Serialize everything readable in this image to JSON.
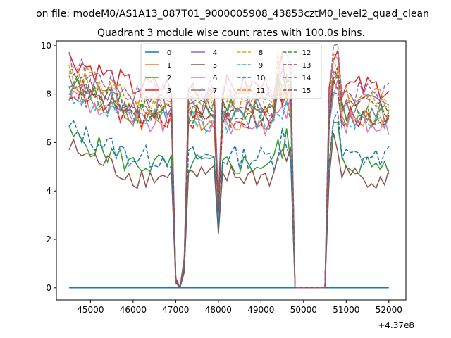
{
  "figure": {
    "suptitle": "on file: modeM0/AS1A13_087T01_9000005908_43853cztM0_level2_quad_clean",
    "title": "Quadrant 3 module wise count rates with 100.0s bins.",
    "x_offset_label": "+4.37e8"
  },
  "chart_data": {
    "type": "line",
    "title": "Quadrant 3 module wise count rates with 100.0s bins.",
    "xlabel": "",
    "ylabel": "",
    "x_offset": 437000000,
    "xlim": [
      44200,
      52400
    ],
    "ylim": [
      -0.5,
      10.2
    ],
    "xticks": [
      45000,
      46000,
      47000,
      48000,
      49000,
      50000,
      51000,
      52000
    ],
    "yticks": [
      0,
      2,
      4,
      6,
      8,
      10
    ],
    "grid": false,
    "legend": {
      "placement": "top-center",
      "columns": 4
    },
    "bin_seconds": 100,
    "time_start": 44500,
    "time_end": 52050,
    "segments": [
      {
        "dip": 47100,
        "low_from": 47000,
        "low_to": 47200,
        "dip_values": "zero"
      },
      {
        "dip": 48000,
        "partial_dip": true
      },
      {
        "gap_from": 49800,
        "gap_to": 50500,
        "gap_value": 0
      }
    ],
    "series": [
      {
        "name": "0",
        "color": "#1f77b4",
        "style": "solid",
        "level": 0.0
      },
      {
        "name": "1",
        "color": "#ff7f0e",
        "style": "solid",
        "level": 7.0
      },
      {
        "name": "2",
        "color": "#2ca02c",
        "style": "solid",
        "level": 5.1
      },
      {
        "name": "3",
        "color": "#d62728",
        "style": "solid",
        "level": 8.3
      },
      {
        "name": "4",
        "color": "#9467bd",
        "style": "solid",
        "level": 7.5
      },
      {
        "name": "5",
        "color": "#8c564b",
        "style": "solid",
        "level": 4.6
      },
      {
        "name": "6",
        "color": "#e377c2",
        "style": "solid",
        "level": 6.8
      },
      {
        "name": "7",
        "color": "#7f7f7f",
        "style": "solid",
        "level": 7.2
      },
      {
        "name": "8",
        "color": "#bcbd22",
        "style": "dashed",
        "level": 7.6
      },
      {
        "name": "9",
        "color": "#17becf",
        "style": "dashed",
        "level": 6.9
      },
      {
        "name": "10",
        "color": "#1f77b4",
        "style": "dashed",
        "level": 5.4
      },
      {
        "name": "11",
        "color": "#ff7f0e",
        "style": "dashed",
        "level": 7.8
      },
      {
        "name": "12",
        "color": "#2ca02c",
        "style": "dashed",
        "level": 7.3
      },
      {
        "name": "13",
        "color": "#d62728",
        "style": "dashed",
        "level": 7.0
      },
      {
        "name": "14",
        "color": "#9467bd",
        "style": "dashed",
        "level": 8.1
      },
      {
        "name": "15",
        "color": "#8c564b",
        "style": "dashed",
        "level": 7.4
      }
    ]
  }
}
